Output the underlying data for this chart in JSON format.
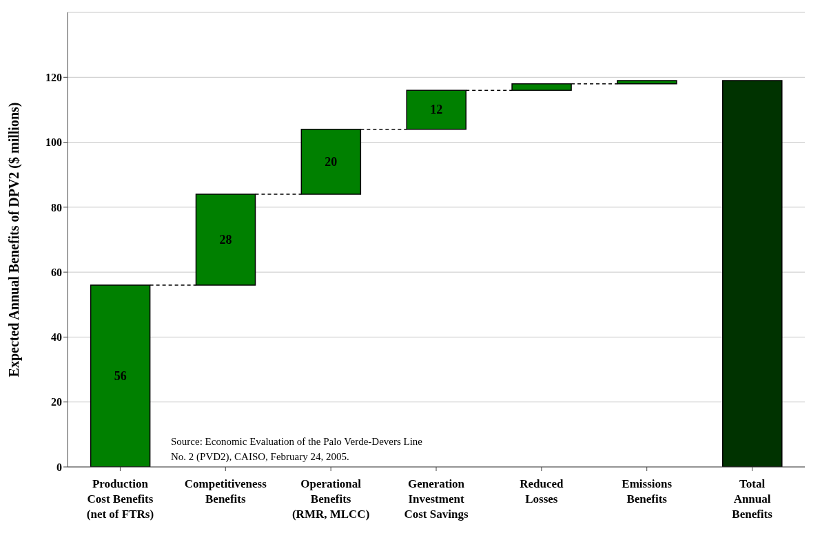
{
  "chart_data": {
    "type": "bar",
    "ylabel": "Expected Annual Benefits of DPV2 ($ millions)",
    "categories": [
      "Production\nCost Benefits\n(net of FTRs)",
      "Competitiveness\nBenefits",
      "Operational\nBenefits\n(RMR, MLCC)",
      "Generation\nInvestment\nCost Savings",
      "Reduced\nLosses",
      "Emissions\nBenefits",
      "Total\nAnnual\nBenefits"
    ],
    "values": [
      56,
      28,
      20,
      12,
      2,
      1,
      119
    ],
    "base": [
      0,
      56,
      84,
      104,
      116,
      118,
      0
    ],
    "colors": [
      "#008000",
      "#008000",
      "#008000",
      "#008000",
      "#008000",
      "#008000",
      "#003300"
    ],
    "value_labels": [
      "56",
      "28",
      "20",
      "12",
      null,
      null,
      null
    ],
    "ylim": [
      0,
      140
    ],
    "yticks": [
      0,
      20,
      40,
      60,
      80,
      100,
      120
    ],
    "grid": "y",
    "legend": false,
    "annotations": [
      "Source: Economic Evaluation of the Palo Verde-Devers Line\nNo. 2 (PVD2), CAISO, February 24, 2005."
    ]
  }
}
